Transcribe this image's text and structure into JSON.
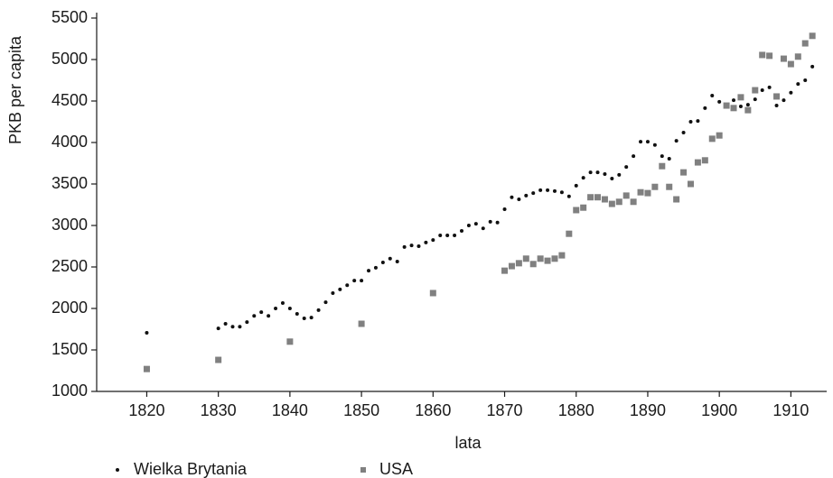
{
  "chart_data": {
    "type": "scatter",
    "x_label": "lata",
    "y_label": "PKB per capita",
    "xlim": [
      1813,
      1915
    ],
    "ylim": [
      1000,
      5500
    ],
    "xticks": [
      1820,
      1830,
      1840,
      1850,
      1860,
      1870,
      1880,
      1890,
      1900,
      1910
    ],
    "yticks": [
      1000,
      1500,
      2000,
      2500,
      3000,
      3500,
      4000,
      4500,
      5000,
      5500
    ],
    "legend": "bottom",
    "series": [
      {
        "name": "Wielka Brytania",
        "color": "#111111",
        "marker": "dot",
        "x": [
          1820,
          1830,
          1831,
          1832,
          1833,
          1834,
          1835,
          1836,
          1837,
          1838,
          1839,
          1840,
          1841,
          1842,
          1843,
          1844,
          1845,
          1846,
          1847,
          1848,
          1849,
          1850,
          1851,
          1852,
          1853,
          1854,
          1855,
          1856,
          1857,
          1858,
          1859,
          1860,
          1861,
          1862,
          1863,
          1864,
          1865,
          1866,
          1867,
          1868,
          1869,
          1870,
          1871,
          1872,
          1873,
          1874,
          1875,
          1876,
          1877,
          1878,
          1879,
          1880,
          1881,
          1882,
          1883,
          1884,
          1885,
          1886,
          1887,
          1888,
          1889,
          1890,
          1891,
          1892,
          1893,
          1894,
          1895,
          1896,
          1897,
          1898,
          1899,
          1900,
          1901,
          1902,
          1903,
          1904,
          1905,
          1906,
          1907,
          1908,
          1909,
          1910,
          1911,
          1912,
          1913
        ],
        "values": [
          1707,
          1760,
          1815,
          1780,
          1780,
          1835,
          1910,
          1955,
          1910,
          2000,
          2065,
          2000,
          1935,
          1880,
          1890,
          1980,
          2075,
          2185,
          2230,
          2280,
          2335,
          2335,
          2455,
          2490,
          2555,
          2600,
          2565,
          2740,
          2760,
          2750,
          2795,
          2825,
          2880,
          2880,
          2880,
          2935,
          3000,
          3020,
          2965,
          3045,
          3035,
          3195,
          3340,
          3315,
          3360,
          3390,
          3425,
          3425,
          3415,
          3400,
          3350,
          3480,
          3575,
          3640,
          3640,
          3620,
          3565,
          3610,
          3705,
          3835,
          4010,
          4010,
          3970,
          3835,
          3805,
          4020,
          4120,
          4250,
          4260,
          4415,
          4565,
          4490,
          4455,
          4510,
          4435,
          4455,
          4520,
          4630,
          4665,
          4445,
          4510,
          4600,
          4705,
          4750,
          4915
        ]
      },
      {
        "name": "USA",
        "color": "#808080",
        "marker": "square",
        "x": [
          1820,
          1830,
          1840,
          1850,
          1860,
          1870,
          1871,
          1872,
          1873,
          1874,
          1875,
          1876,
          1877,
          1878,
          1879,
          1880,
          1881,
          1882,
          1883,
          1884,
          1885,
          1886,
          1887,
          1888,
          1889,
          1890,
          1891,
          1892,
          1893,
          1894,
          1895,
          1896,
          1897,
          1898,
          1899,
          1900,
          1901,
          1902,
          1903,
          1904,
          1905,
          1906,
          1907,
          1908,
          1909,
          1910,
          1911,
          1912,
          1913
        ],
        "values": [
          1270,
          1380,
          1600,
          1815,
          2185,
          2455,
          2510,
          2545,
          2600,
          2535,
          2600,
          2575,
          2600,
          2640,
          2900,
          3185,
          3215,
          3340,
          3340,
          3315,
          3260,
          3285,
          3360,
          3285,
          3400,
          3390,
          3465,
          3715,
          3465,
          3315,
          3640,
          3500,
          3760,
          3785,
          4045,
          4085,
          4445,
          4415,
          4545,
          4390,
          4630,
          5055,
          5045,
          4555,
          5010,
          4945,
          5035,
          5195,
          5285
        ]
      }
    ]
  }
}
